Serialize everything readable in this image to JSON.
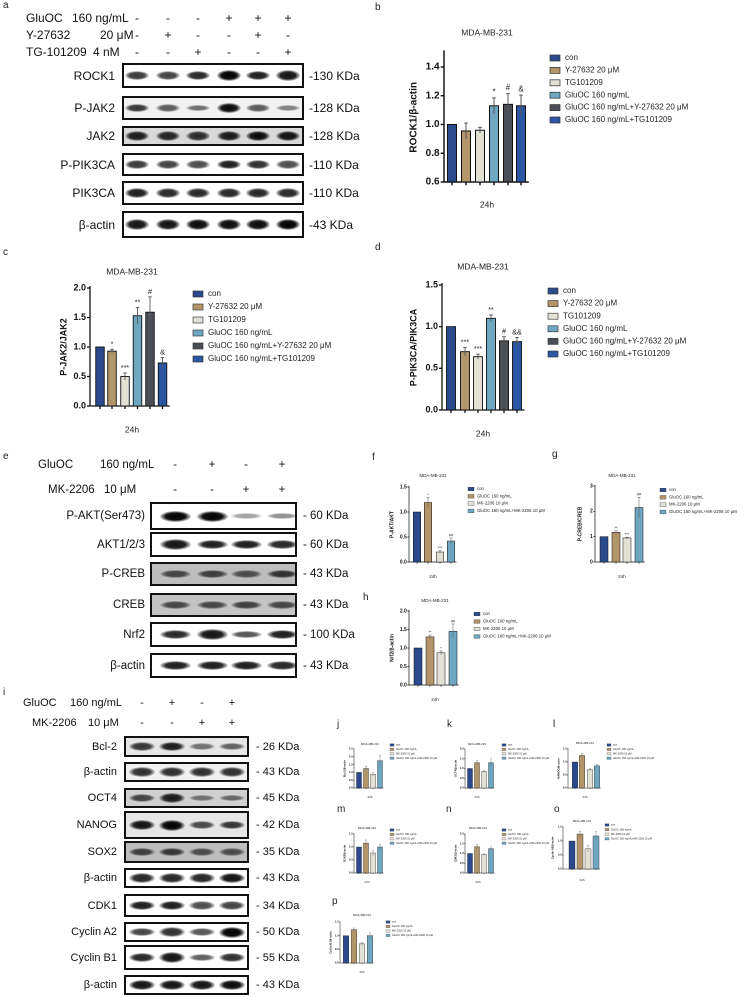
{
  "panel_labels": [
    "a",
    "b",
    "c",
    "d",
    "e",
    "f",
    "g",
    "h",
    "i",
    "j",
    "k",
    "l",
    "m",
    "n",
    "o",
    "p"
  ],
  "panel_a": {
    "treatments": [
      {
        "name": "GluOC",
        "dose": "160 ng/mL",
        "lanes": [
          "-",
          "-",
          "-",
          "+",
          "+",
          "+"
        ]
      },
      {
        "name": "Y-27632",
        "dose": "20 μM",
        "lanes": [
          "-",
          "+",
          "-",
          "-",
          "+",
          "-"
        ]
      },
      {
        "name": "TG-101209",
        "dose": "4 nM",
        "lanes": [
          "-",
          "-",
          "+",
          "-",
          "-",
          "+"
        ]
      }
    ],
    "blots": [
      {
        "protein": "ROCK1",
        "size": "-130 KDa",
        "bands": [
          0.7,
          0.65,
          0.8,
          1.0,
          0.85,
          0.9
        ],
        "background": "#ffffff"
      },
      {
        "protein": "P-JAK2",
        "size": "-128 KDa",
        "bands": [
          0.7,
          0.5,
          0.4,
          0.95,
          0.5,
          0.3
        ],
        "background": "#f2f2f2"
      },
      {
        "protein": "JAK2",
        "size": "-128 KDa",
        "bands": [
          0.85,
          0.8,
          0.75,
          0.85,
          0.95,
          0.9
        ],
        "background": "#d9d9d9"
      },
      {
        "protein": "P-PIK3CA",
        "size": "-110 KDa",
        "bands": [
          0.7,
          0.65,
          0.6,
          0.85,
          0.75,
          0.6
        ],
        "background": "#ffffff"
      },
      {
        "protein": "PIK3CA",
        "size": "-110 KDa",
        "bands": [
          0.85,
          0.8,
          0.8,
          0.8,
          0.8,
          0.8
        ],
        "background": "#ffffff"
      },
      {
        "protein": "β-actin",
        "size": "-43 KDa",
        "bands": [
          0.9,
          0.9,
          0.95,
          0.95,
          0.95,
          1.0
        ],
        "background": "#ffffff"
      }
    ]
  },
  "panel_e": {
    "treatments": [
      {
        "name": "GluOC",
        "dose": "160 ng/mL",
        "lanes": [
          "-",
          "+",
          "-",
          "+"
        ]
      },
      {
        "name": "MK-2206",
        "dose": "10 μM",
        "lanes": [
          "-",
          "-",
          "+",
          "+"
        ]
      }
    ],
    "blots": [
      {
        "protein": "P-AKT(Ser473)",
        "size": "- 60 KDa",
        "bands": [
          1.0,
          1.0,
          0.15,
          0.25
        ],
        "background": "#ffffff"
      },
      {
        "protein": "AKT1/2/3",
        "size": "- 60 KDa",
        "bands": [
          0.9,
          0.85,
          0.85,
          0.8
        ],
        "background": "#ffffff"
      },
      {
        "protein": "P-CREB",
        "size": "- 43 KDa",
        "bands": [
          0.55,
          0.6,
          0.5,
          0.7
        ],
        "background": "#bdbdbd"
      },
      {
        "protein": "CREB",
        "size": "- 43 KDa",
        "bands": [
          0.55,
          0.55,
          0.6,
          0.55
        ],
        "background": "#c4c4c4"
      },
      {
        "protein": "Nrf2",
        "size": "- 100 KDa",
        "bands": [
          0.8,
          0.9,
          0.55,
          0.85
        ],
        "background": "#ffffff"
      },
      {
        "protein": "β-actin",
        "size": "- 43 KDa",
        "bands": [
          0.85,
          0.85,
          0.85,
          0.8
        ],
        "background": "#ffffff"
      }
    ]
  },
  "panel_i": {
    "treatments": [
      {
        "name": "GluOC",
        "dose": "160 ng/mL",
        "lanes": [
          "-",
          "+",
          "-",
          "+"
        ]
      },
      {
        "name": "MK-2206",
        "dose": "10 μM",
        "lanes": [
          "-",
          "-",
          "+",
          "+"
        ]
      }
    ],
    "blots": [
      {
        "protein": "Bcl-2",
        "size": "- 26 KDa",
        "bands": [
          0.7,
          0.85,
          0.35,
          0.45
        ],
        "background": "#e6e6e6"
      },
      {
        "protein": "β-actin",
        "size": "- 43 KDa",
        "bands": [
          0.75,
          0.75,
          0.75,
          0.75
        ],
        "background": "#f0f0f0"
      },
      {
        "protein": "OCT4",
        "size": "- 45 KDa",
        "bands": [
          0.6,
          0.85,
          0.3,
          0.35
        ],
        "background": "#d0d0d0"
      },
      {
        "protein": "NANOG",
        "size": "- 42 KDa",
        "bands": [
          0.9,
          1.0,
          0.6,
          0.7
        ],
        "background": "#e6e6e6"
      },
      {
        "protein": "SOX2",
        "size": "- 35 KDa",
        "bands": [
          0.6,
          0.65,
          0.5,
          0.5
        ],
        "background": "#bdbdbd"
      },
      {
        "protein": "β-actin",
        "size": "- 43 KDa",
        "bands": [
          0.8,
          0.8,
          0.8,
          0.9
        ],
        "background": "#ffffff"
      },
      {
        "protein": "CDK1",
        "size": "- 34 KDa",
        "bands": [
          0.85,
          0.85,
          0.6,
          0.65
        ],
        "background": "#ffffff"
      },
      {
        "protein": "Cyclin A2",
        "size": "- 50 KDa",
        "bands": [
          0.65,
          0.75,
          0.55,
          1.0
        ],
        "background": "#ffffff"
      },
      {
        "protein": "Cyclin B1",
        "size": "- 55 KDa",
        "bands": [
          0.8,
          0.9,
          0.5,
          0.75
        ],
        "background": "#ffffff"
      },
      {
        "protein": "β-actin",
        "size": "- 43 KDa",
        "bands": [
          0.9,
          0.9,
          0.9,
          0.95
        ],
        "background": "#ffffff"
      }
    ]
  },
  "chart_data": [
    {
      "panel": "b",
      "type": "bar",
      "title": "MDA-MB-231",
      "ylabel": "ROCK1/β-actin",
      "xlabel": "24h",
      "ylim": [
        0.6,
        1.5
      ],
      "tick_labels": [
        "0.6",
        "0.8",
        "1.0",
        "1.2",
        "1.4"
      ],
      "categories": [
        "con",
        "Y-27632 20 μM",
        "TG101209",
        "GluOC 160 ng/mL",
        "GluOC 160 ng/mL+Y-27632 20 μM",
        "GluOC 160 ng/mL+TG101209"
      ],
      "values": [
        1.0,
        0.955,
        0.96,
        1.13,
        1.14,
        1.13
      ],
      "errors": [
        0,
        0.055,
        0.02,
        0.055,
        0.075,
        0.075
      ],
      "significance": [
        "",
        "",
        "",
        "*",
        "#",
        "&"
      ],
      "colors": [
        "#2b4a8d",
        "#b3956a",
        "#e3e0d6",
        "#6ea7bf",
        "#4a4f56",
        "#2b56a3"
      ],
      "legend": "right"
    },
    {
      "panel": "c",
      "type": "bar",
      "title": "MDA-MB-231",
      "ylabel": "P-JAK2/JAK2",
      "xlabel": "24h",
      "ylim": [
        0,
        2.0
      ],
      "tick_labels": [
        "0.0",
        "0.5",
        "1.0",
        "1.5",
        "2.0"
      ],
      "categories": [
        "con",
        "Y-27632 20 μM",
        "TG101209",
        "GluOC 160 ng/mL",
        "GluOC 160 ng/mL+Y-27632 20 μM",
        "GluOC 160 ng/mL+TG101209"
      ],
      "values": [
        1.0,
        0.93,
        0.5,
        1.53,
        1.59,
        0.73
      ],
      "errors": [
        0,
        0.03,
        0.06,
        0.14,
        0.26,
        0.09
      ],
      "significance": [
        "",
        "*",
        "***",
        "**",
        "#",
        "&"
      ],
      "colors": [
        "#2b4a8d",
        "#b3956a",
        "#e3e0d6",
        "#6ea7bf",
        "#4a4f56",
        "#2b56a3"
      ],
      "legend": "right"
    },
    {
      "panel": "d",
      "type": "bar",
      "title": "MDA-MB-231",
      "ylabel": "P-PIK3CA/PIK3CA",
      "xlabel": "24h",
      "ylim": [
        0,
        1.5
      ],
      "tick_labels": [
        "0.0",
        "0.5",
        "1.0",
        "1.5"
      ],
      "categories": [
        "con",
        "Y-27632 20 μM",
        "TG101209",
        "GluOC 160 ng/mL",
        "GluOC 160 ng/mL+Y-27632 20 μM",
        "GluOC 160 ng/mL+TG101209"
      ],
      "values": [
        1.0,
        0.7,
        0.64,
        1.1,
        0.83,
        0.82
      ],
      "errors": [
        0,
        0.05,
        0.03,
        0.04,
        0.05,
        0.05
      ],
      "significance": [
        "",
        "***",
        "***",
        "**",
        "#",
        "&&"
      ],
      "colors": [
        "#2b4a8d",
        "#b3956a",
        "#e3e0d6",
        "#6ea7bf",
        "#4a4f56",
        "#2b56a3"
      ],
      "legend": "right"
    },
    {
      "panel": "f",
      "type": "bar",
      "title": "MDA-MB-231",
      "ylabel": "P-AKT/AKT",
      "xlabel": "24h",
      "ylim": [
        0,
        1.5
      ],
      "tick_labels": [
        "0.0",
        "0.5",
        "1.0",
        "1.5"
      ],
      "categories": [
        "con",
        "GluOC 160 ng/mL",
        "MK-2206 10 μM",
        "GluOC 160 ng/mL+MK-2206 10 μM"
      ],
      "values": [
        1.0,
        1.19,
        0.2,
        0.42
      ],
      "errors": [
        0,
        0.1,
        0.03,
        0.06
      ],
      "significance": [
        "",
        "*",
        "***",
        "##"
      ],
      "colors": [
        "#2b4a8d",
        "#b3956a",
        "#e3e0d6",
        "#6ea7bf"
      ],
      "legend": "right"
    },
    {
      "panel": "g",
      "type": "bar",
      "title": "MDA-MB-231",
      "ylabel": "P-CREB/CREB",
      "xlabel": "24h",
      "ylim": [
        0,
        3
      ],
      "tick_labels": [
        "0",
        "1",
        "2",
        "3"
      ],
      "categories": [
        "con",
        "GluOC 160 ng/mL",
        "MK-2206 10 μM",
        "GluOC 160 ng/mL+MK-2206 10 μM"
      ],
      "values": [
        1.0,
        1.17,
        0.95,
        2.15
      ],
      "errors": [
        0,
        0.06,
        0.03,
        0.4
      ],
      "significance": [
        "",
        "**",
        "***",
        "##"
      ],
      "colors": [
        "#2b4a8d",
        "#b3956a",
        "#e3e0d6",
        "#6ea7bf"
      ],
      "legend": "right"
    },
    {
      "panel": "h",
      "type": "bar",
      "title": "MDA-MB-231",
      "ylabel": "Nrf2/β-actin",
      "xlabel": "24h",
      "ylim": [
        0,
        2.0
      ],
      "tick_labels": [
        "0.0",
        "0.5",
        "1.0",
        "1.5",
        "2.0"
      ],
      "categories": [
        "con",
        "GluOC 160 ng/mL",
        "MK-2206 10 μM",
        "GluOC 160 ng/mL+MK-2206 10 μM"
      ],
      "values": [
        1.0,
        1.3,
        0.87,
        1.45
      ],
      "errors": [
        0,
        0.05,
        0.05,
        0.2
      ],
      "significance": [
        "",
        "**",
        "*",
        "##"
      ],
      "colors": [
        "#2b4a8d",
        "#b3956a",
        "#e3e0d6",
        "#6ea7bf"
      ],
      "legend": "right"
    },
    {
      "panel": "j",
      "type": "bar",
      "title": "MDA-MB-231",
      "ylabel": "Bcl-2/β-actin",
      "xlabel": "24h",
      "ylim": [
        0,
        2.5
      ],
      "tick_labels": [
        "0.0",
        "0.5",
        "1.0",
        "1.5",
        "2.0",
        "2.5"
      ],
      "categories": [
        "con",
        "GluOC 160 ng/mL",
        "MK-2206 10 μM",
        "GluOC 160 ng/mL+MK-2206 10 μM"
      ],
      "values": [
        1.0,
        1.25,
        0.88,
        1.75
      ],
      "errors": [
        0,
        0.15,
        0.1,
        0.35
      ],
      "significance": [
        "",
        "",
        "",
        ""
      ],
      "colors": [
        "#2b4a8d",
        "#b3956a",
        "#e3e0d6",
        "#6ea7bf"
      ],
      "legend": "right"
    },
    {
      "panel": "k",
      "type": "bar",
      "title": "MDA-MB-231",
      "ylabel": "OCT4/β-actin",
      "xlabel": "24h",
      "ylim": [
        0,
        2.0
      ],
      "tick_labels": [
        "0.0",
        "0.5",
        "1.0",
        "1.5",
        "2.0"
      ],
      "categories": [
        "con",
        "GluOC 160 ng/mL",
        "MK-2206 10 μM",
        "GluOC 160 ng/mL+MK-2206 10 μM"
      ],
      "values": [
        1.0,
        1.3,
        0.85,
        1.3
      ],
      "errors": [
        0,
        0.12,
        0.05,
        0.2
      ],
      "significance": [
        "",
        "",
        "",
        ""
      ],
      "colors": [
        "#2b4a8d",
        "#b3956a",
        "#e3e0d6",
        "#6ea7bf"
      ],
      "legend": "right"
    },
    {
      "panel": "l",
      "type": "bar",
      "title": "MDA-MB-231",
      "ylabel": "NANOG/β-actin",
      "xlabel": "24h",
      "ylim": [
        0,
        1.5
      ],
      "tick_labels": [
        "0.0",
        "0.5",
        "1.0",
        "1.5"
      ],
      "categories": [
        "con",
        "GluOC 160 ng/mL",
        "MK-2206 10 μM",
        "GluOC 160 ng/mL+MK-2206 10 μM"
      ],
      "values": [
        1.0,
        1.25,
        0.7,
        0.85
      ],
      "errors": [
        0,
        0.08,
        0.05,
        0.06
      ],
      "significance": [
        "",
        "",
        "",
        ""
      ],
      "colors": [
        "#2b4a8d",
        "#b3956a",
        "#e3e0d6",
        "#6ea7bf"
      ],
      "legend": "right"
    },
    {
      "panel": "m",
      "type": "bar",
      "title": "MDA-MB-231",
      "ylabel": "SOX2/β-actin",
      "xlabel": "24h",
      "ylim": [
        0,
        1.5
      ],
      "tick_labels": [
        "0.0",
        "0.5",
        "1.0",
        "1.5"
      ],
      "categories": [
        "con",
        "GluOC 160 ng/mL",
        "MK-2206 10 μM",
        "GluOC 160 ng/mL+MK-2206 10 μM"
      ],
      "values": [
        1.0,
        1.15,
        0.77,
        1.0
      ],
      "errors": [
        0,
        0.12,
        0.1,
        0.1
      ],
      "significance": [
        "",
        "",
        "",
        ""
      ],
      "colors": [
        "#2b4a8d",
        "#b3956a",
        "#e3e0d6",
        "#6ea7bf"
      ],
      "legend": "right"
    },
    {
      "panel": "n",
      "type": "bar",
      "title": "MDA-MB-231",
      "ylabel": "CDK1/β-actin",
      "xlabel": "24h",
      "ylim": [
        0,
        2.0
      ],
      "tick_labels": [
        "0.0",
        "0.5",
        "1.0",
        "1.5",
        "2.0"
      ],
      "categories": [
        "con",
        "GluOC 160 ng/mL",
        "MK-2206 10 μM",
        "GluOC 160 ng/mL+MK-2206 10 μM"
      ],
      "values": [
        1.0,
        1.35,
        0.95,
        1.25
      ],
      "errors": [
        0,
        0.12,
        0.04,
        0.1
      ],
      "significance": [
        "",
        "",
        "",
        ""
      ],
      "colors": [
        "#2b4a8d",
        "#b3956a",
        "#e3e0d6",
        "#6ea7bf"
      ],
      "legend": "right"
    },
    {
      "panel": "o",
      "type": "bar",
      "title": "MDA-MB-231",
      "ylabel": "Cyclin A2/β-actin",
      "xlabel": "24h",
      "ylim": [
        0,
        1.5
      ],
      "tick_labels": [
        "0.0",
        "0.5",
        "1.0",
        "1.5"
      ],
      "categories": [
        "con",
        "GluOC 160 ng/mL",
        "MK-2206 10 μM",
        "GluOC 160 ng/mL+MK-2206 10 μM"
      ],
      "values": [
        1.0,
        1.25,
        0.72,
        1.18
      ],
      "errors": [
        0,
        0.1,
        0.12,
        0.15
      ],
      "significance": [
        "",
        "",
        "",
        ""
      ],
      "colors": [
        "#2b4a8d",
        "#b3956a",
        "#e3e0d6",
        "#6ea7bf"
      ],
      "legend": "right"
    },
    {
      "panel": "p",
      "type": "bar",
      "title": "MDA-MB-231",
      "ylabel": "Cyclin B1/β-actin",
      "xlabel": "24h",
      "ylim": [
        0,
        1.5
      ],
      "tick_labels": [
        "0.0",
        "0.5",
        "1.0",
        "1.5"
      ],
      "categories": [
        "con",
        "GluOC 160 ng/mL",
        "MK-2206 10 μM",
        "GluOC 160 ng/mL+MK-2206 10 μM"
      ],
      "values": [
        1.0,
        1.22,
        0.7,
        1.0
      ],
      "errors": [
        0,
        0.06,
        0.05,
        0.1
      ],
      "significance": [
        "",
        "",
        "",
        ""
      ],
      "colors": [
        "#2b4a8d",
        "#b3956a",
        "#e3e0d6",
        "#6ea7bf"
      ],
      "legend": "right"
    }
  ]
}
